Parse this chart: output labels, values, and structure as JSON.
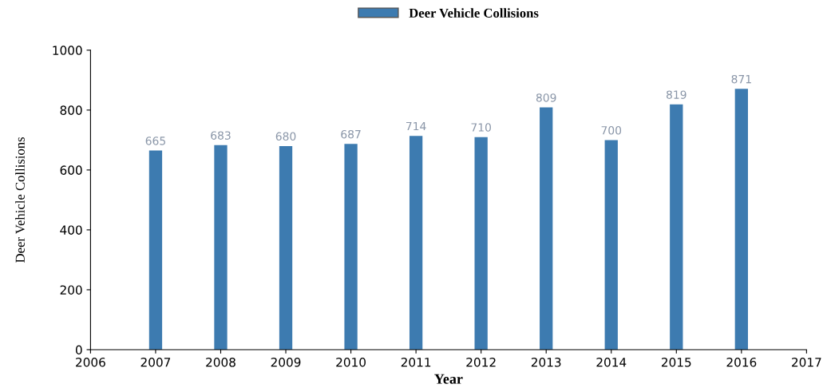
{
  "chart_data": {
    "type": "bar",
    "xlabel": "Year",
    "ylabel": "Deer Vehicle Collisions",
    "x": [
      2007,
      2008,
      2009,
      2010,
      2011,
      2012,
      2013,
      2014,
      2015,
      2016
    ],
    "series": [
      {
        "name": "Deer Vehicle Collisions",
        "color": "#3d7bb0",
        "values": [
          665,
          683,
          680,
          687,
          714,
          710,
          809,
          700,
          819,
          871
        ]
      }
    ],
    "xlim": [
      2006,
      2017
    ],
    "xticks": [
      2006,
      2007,
      2008,
      2009,
      2010,
      2011,
      2012,
      2013,
      2014,
      2015,
      2016,
      2017
    ],
    "ylim": [
      0,
      1000
    ],
    "yticks": [
      0,
      200,
      400,
      600,
      800,
      1000
    ],
    "data_labels": true,
    "grid": false,
    "legend": "top"
  }
}
